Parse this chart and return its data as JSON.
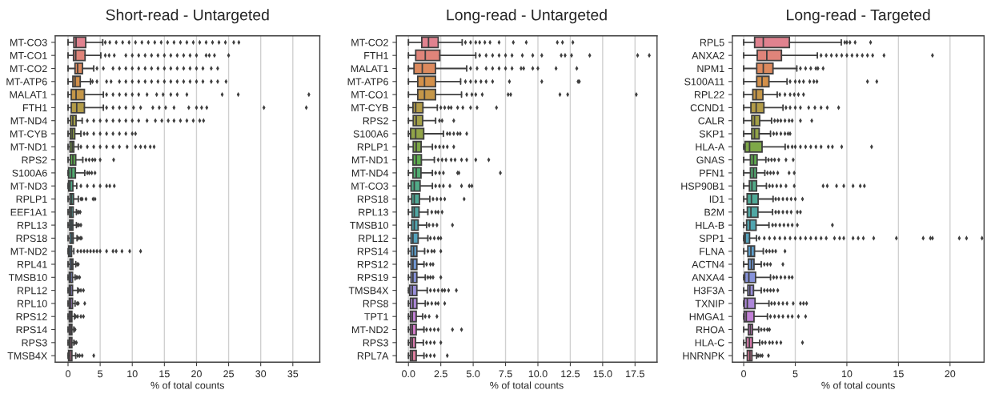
{
  "chart_data": [
    {
      "type": "box",
      "title": "Short-read - Untargeted",
      "xlabel": "% of total counts",
      "orientation": "horizontal",
      "grid": "x",
      "marker": "diamond",
      "xlim": [
        -2,
        39.2
      ],
      "xticks": [
        0,
        5,
        10,
        15,
        20,
        25,
        30,
        35
      ],
      "categories": [
        "MT-CO3",
        "MT-CO1",
        "MT-CO2",
        "MT-ATP6",
        "MALAT1",
        "FTH1",
        "MT-ND4",
        "MT-CYB",
        "MT-ND1",
        "RPS2",
        "S100A6",
        "MT-ND3",
        "RPLP1",
        "EEF1A1",
        "RPL13",
        "RPS18",
        "MT-ND2",
        "RPL41",
        "TMSB10",
        "RPL12",
        "RPL10",
        "RPS12",
        "RPS14",
        "RPS3",
        "TMSB4X"
      ],
      "colors": [
        "#e0828f",
        "#e0847a",
        "#dd8a5e",
        "#d3904a",
        "#c49648",
        "#b39c48",
        "#a3a048",
        "#92a448",
        "#7ea848",
        "#5fad4f",
        "#52ad72",
        "#51ab88",
        "#50aa97",
        "#51a8a4",
        "#52a6b1",
        "#55a3bd",
        "#5d9fcc",
        "#7199d6",
        "#8793da",
        "#9a8fdb",
        "#ae88da",
        "#c280d6",
        "#d27ac8",
        "#db7aae",
        "#df7d9e"
      ],
      "boxes": [
        {
          "low": 0,
          "q1": 0.9,
          "median": 1.25,
          "q3": 2.75,
          "high": 5.4,
          "outliers": [
            5.8,
            6.5,
            7.5,
            8.5,
            9.5,
            10.5,
            11.5,
            12.5,
            13.5,
            14.5,
            15.5,
            16.5,
            17.5,
            18.5,
            19.5,
            20.5,
            21.5,
            22.5,
            23.5,
            24.5,
            25.8,
            26.6
          ]
        },
        {
          "low": 0,
          "q1": 0.85,
          "median": 1.2,
          "q3": 2.65,
          "high": 5.1,
          "outliers": [
            5.8,
            6.4,
            7.2,
            9,
            10,
            11,
            12,
            13,
            14,
            15,
            16,
            17,
            18,
            19,
            20,
            21.5,
            22,
            22.8,
            25
          ]
        },
        {
          "low": 0,
          "q1": 1.08,
          "median": 1.5,
          "q3": 2.25,
          "high": 4.0,
          "outliers": [
            4.5,
            5.5,
            7,
            8,
            9,
            10,
            11,
            12,
            13,
            14,
            15,
            16,
            17,
            18,
            19,
            20,
            21,
            22.3,
            23.3
          ]
        },
        {
          "low": 0,
          "q1": 0.75,
          "median": 1.1,
          "q3": 1.9,
          "high": 3.5,
          "outliers": [
            3.8,
            4.5,
            6,
            6.7,
            8,
            9,
            10,
            11,
            12,
            13,
            14,
            15,
            16,
            17,
            18,
            19,
            20,
            21,
            22.3,
            23.3,
            24.6
          ]
        },
        {
          "low": 0,
          "q1": 0.5,
          "median": 1.25,
          "q3": 2.55,
          "high": 5.5,
          "outliers": [
            6,
            7,
            8,
            9,
            10,
            11,
            12.3,
            13.8,
            14.8,
            16,
            17,
            18.5,
            24,
            26.5,
            37.5
          ]
        },
        {
          "low": 0,
          "q1": 0.5,
          "median": 1.35,
          "q3": 2.55,
          "high": 5.5,
          "outliers": [
            6,
            7,
            8,
            9,
            10.2,
            11.3,
            13.2,
            14.2,
            15.2,
            16.5,
            18.8,
            20,
            20.8,
            21.6,
            30.5,
            37.1
          ]
        },
        {
          "low": 0,
          "q1": 0.4,
          "median": 0.75,
          "q3": 1.25,
          "high": 2.2,
          "outliers": [
            3,
            4,
            5,
            6,
            7,
            8,
            9,
            10,
            11,
            12.3,
            13.6,
            14.6,
            15.6,
            16.5,
            17.5,
            18.5,
            19.5,
            20.5,
            21.1
          ]
        },
        {
          "low": 0,
          "q1": 0.35,
          "median": 0.65,
          "q3": 1.05,
          "high": 2.0,
          "outliers": [
            2.5,
            3,
            4,
            5,
            6,
            7,
            8,
            9,
            10,
            10.5
          ]
        },
        {
          "low": 0,
          "q1": 0.3,
          "median": 0.65,
          "q3": 0.9,
          "high": 1.6,
          "outliers": [
            2,
            3,
            4,
            5,
            6,
            7,
            8,
            9.2,
            10.5,
            11.3,
            12,
            12.8,
            13.4
          ]
        },
        {
          "low": 0,
          "q1": 0.35,
          "median": 0.75,
          "q3": 1.2,
          "high": 2.3,
          "outliers": [
            2.8,
            3.3,
            3.8,
            4.2,
            5,
            7.1
          ]
        },
        {
          "low": 0,
          "q1": 0.1,
          "median": 0.55,
          "q3": 1.15,
          "high": 2.6,
          "outliers": [
            3,
            3.3,
            3.7,
            4.2
          ]
        },
        {
          "low": 0,
          "q1": 0.1,
          "median": 0.3,
          "q3": 0.75,
          "high": 1.35,
          "outliers": [
            2,
            3,
            4,
            5,
            6,
            6.5,
            7.2
          ]
        },
        {
          "low": 0,
          "q1": 0.3,
          "median": 0.55,
          "q3": 0.85,
          "high": 1.6,
          "outliers": [
            2,
            2.2,
            2.8,
            3.9,
            4.2
          ]
        },
        {
          "low": 0,
          "q1": 0.25,
          "median": 0.5,
          "q3": 0.8,
          "high": 1.3,
          "outliers": [
            1.5,
            1.7,
            1.9
          ]
        },
        {
          "low": 0,
          "q1": 0.25,
          "median": 0.5,
          "q3": 0.75,
          "high": 1.3,
          "outliers": [
            1.5,
            1.7,
            2.0
          ]
        },
        {
          "low": 0,
          "q1": 0.3,
          "median": 0.6,
          "q3": 0.8,
          "high": 1.4,
          "outliers": [
            1.6,
            1.9,
            2.1
          ]
        },
        {
          "low": 0,
          "q1": 0.1,
          "median": 0.3,
          "q3": 0.55,
          "high": 0.9,
          "outliers": [
            1.5,
            2,
            2.5,
            3,
            3.5,
            4,
            4.5,
            5,
            6,
            7,
            7.5,
            8.4,
            9.6,
            11.3
          ]
        },
        {
          "low": 0,
          "q1": 0.3,
          "median": 0.55,
          "q3": 0.75,
          "high": 1.2,
          "outliers": [
            1.4,
            1.6
          ]
        },
        {
          "low": 0,
          "q1": 0.2,
          "median": 0.4,
          "q3": 0.7,
          "high": 1.1,
          "outliers": [
            1.3,
            1.5,
            1.8
          ]
        },
        {
          "low": 0,
          "q1": 0.2,
          "median": 0.4,
          "q3": 0.7,
          "high": 1.5,
          "outliers": [
            1.7,
            2.0,
            2.4
          ]
        },
        {
          "low": 0,
          "q1": 0.2,
          "median": 0.4,
          "q3": 0.7,
          "high": 1.1,
          "outliers": [
            1.4,
            1.6,
            2.6
          ]
        },
        {
          "low": 0,
          "q1": 0.2,
          "median": 0.4,
          "q3": 0.6,
          "high": 1.0,
          "outliers": [
            1.2,
            1.5,
            2.0,
            2.4
          ]
        },
        {
          "low": 0,
          "q1": 0.2,
          "median": 0.4,
          "q3": 0.6,
          "high": 0.9,
          "outliers": [
            1.0,
            1.1
          ]
        },
        {
          "low": 0,
          "q1": 0.2,
          "median": 0.35,
          "q3": 0.6,
          "high": 0.9,
          "outliers": [
            1.1,
            1.3
          ]
        },
        {
          "low": 0,
          "q1": 0.1,
          "median": 0.3,
          "q3": 0.6,
          "high": 1.2,
          "outliers": [
            1.5,
            1.8,
            2.2,
            4.0
          ]
        }
      ]
    },
    {
      "type": "box",
      "title": "Long-read - Untargeted",
      "xlabel": "% of total counts",
      "orientation": "horizontal",
      "grid": "x",
      "marker": "diamond",
      "xlim": [
        -0.93,
        19.2
      ],
      "xticks": [
        {
          "value": 0,
          "label": "0.0"
        },
        {
          "value": 2.5,
          "label": "2.5"
        },
        {
          "value": 5,
          "label": "5.0"
        },
        {
          "value": 7.5,
          "label": "7.5"
        },
        {
          "value": 10,
          "label": "10.0"
        },
        {
          "value": 12.5,
          "label": "12.5"
        },
        {
          "value": 15,
          "label": "15.0"
        },
        {
          "value": 17.5,
          "label": "17.5"
        }
      ],
      "categories": [
        "MT-CO2",
        "FTH1",
        "MALAT1",
        "MT-ATP6",
        "MT-CO1",
        "MT-CYB",
        "RPS2",
        "S100A6",
        "RPLP1",
        "MT-ND1",
        "MT-ND4",
        "MT-CO3",
        "RPS18",
        "RPL13",
        "TMSB10",
        "RPL12",
        "RPS14",
        "RPS12",
        "RPS19",
        "TMSB4X",
        "RPS8",
        "TPT1",
        "MT-ND2",
        "RPS3",
        "RPL7A"
      ],
      "colors": [
        "#e0828f",
        "#e0847a",
        "#dd8a5e",
        "#d3904a",
        "#c49648",
        "#b39c48",
        "#a3a048",
        "#92a448",
        "#7ea848",
        "#5fad4f",
        "#52ad72",
        "#51ab88",
        "#50aa97",
        "#51a8a4",
        "#52a6b1",
        "#55a3bd",
        "#5d9fcc",
        "#7199d6",
        "#8793da",
        "#9a8fdb",
        "#ae88da",
        "#c280d6",
        "#d27ac8",
        "#db7aae",
        "#df7d9e"
      ],
      "boxes": [
        {
          "low": 0,
          "q1": 1.03,
          "median": 1.55,
          "q3": 2.3,
          "high": 4.15,
          "outliers": [
            4.4,
            4.8,
            5.2,
            5.5,
            5.9,
            6.3,
            7.0,
            8.1,
            9.1,
            11.5,
            11.9,
            12.7
          ]
        },
        {
          "low": 0,
          "q1": 0.56,
          "median": 1.3,
          "q3": 2.42,
          "high": 5.2,
          "outliers": [
            5.5,
            6,
            6.5,
            7,
            7.5,
            8,
            8.8,
            9.6,
            10.3,
            11.8,
            12.1,
            12.6,
            14,
            17.7,
            18.6
          ]
        },
        {
          "low": 0,
          "q1": 0.43,
          "median": 1.07,
          "q3": 2.09,
          "high": 4.5,
          "outliers": [
            4.8,
            5.3,
            6,
            6.5,
            7,
            7.5,
            8,
            8.7,
            8.9,
            9.6,
            10,
            11.4,
            13
          ]
        },
        {
          "low": 0,
          "q1": 0.72,
          "median": 1.24,
          "q3": 2.09,
          "high": 4.03,
          "outliers": [
            4.4,
            4.8,
            5.2,
            5.6,
            6,
            6.5,
            7.8,
            10.3,
            13.1,
            13.2
          ]
        },
        {
          "low": 0,
          "q1": 0.72,
          "median": 1.24,
          "q3": 2.09,
          "high": 4.1,
          "outliers": [
            4.5,
            4.9,
            5.2,
            5.7,
            7.7,
            7.9,
            11.7,
            12.3,
            17.6
          ]
        },
        {
          "low": 0,
          "q1": 0.35,
          "median": 0.56,
          "q3": 1.12,
          "high": 2.23,
          "outliers": [
            2.5,
            2.8,
            3.1,
            3.3,
            3.8,
            4.2,
            4.8,
            5.3,
            6.8
          ]
        },
        {
          "low": 0,
          "q1": 0.37,
          "median": 0.6,
          "q3": 1.1,
          "high": 2.1,
          "outliers": [
            2.4,
            2.6,
            3.5
          ]
        },
        {
          "low": 0,
          "q1": 0.17,
          "median": 0.56,
          "q3": 1.18,
          "high": 2.7,
          "outliers": [
            3,
            3.2,
            3.5,
            3.8,
            4.0,
            4.5
          ]
        },
        {
          "low": 0,
          "q1": 0.37,
          "median": 0.6,
          "q3": 0.98,
          "high": 1.85,
          "outliers": [
            2.1,
            2.4,
            2.7,
            3.0,
            3.5
          ]
        },
        {
          "low": 0,
          "q1": 0.35,
          "median": 0.6,
          "q3": 1.0,
          "high": 2.0,
          "outliers": [
            2.3,
            2.6,
            2.9,
            3.3,
            3.6,
            4.1,
            4.5,
            5.2,
            6.2
          ]
        },
        {
          "low": 0,
          "q1": 0.35,
          "median": 0.6,
          "q3": 0.97,
          "high": 1.85,
          "outliers": [
            2.1,
            2.4,
            2.7,
            3.8,
            3.9,
            7.1
          ]
        },
        {
          "low": 0,
          "q1": 0.2,
          "median": 0.45,
          "q3": 0.9,
          "high": 1.85,
          "outliers": [
            2.1,
            2.4,
            2.7,
            3.2,
            4.1,
            4.7,
            4.9
          ]
        },
        {
          "low": 0,
          "q1": 0.25,
          "median": 0.45,
          "q3": 0.85,
          "high": 1.65,
          "outliers": [
            1.9,
            2.2,
            2.5,
            2.8,
            4.3
          ]
        },
        {
          "low": 0,
          "q1": 0.28,
          "median": 0.45,
          "q3": 0.82,
          "high": 1.5,
          "outliers": [
            1.8,
            2.1,
            2.3,
            2.6
          ]
        },
        {
          "low": 0,
          "q1": 0.25,
          "median": 0.45,
          "q3": 0.75,
          "high": 1.4,
          "outliers": [
            1.6,
            1.9,
            2.2,
            3.4
          ]
        },
        {
          "low": 0,
          "q1": 0.2,
          "median": 0.35,
          "q3": 0.75,
          "high": 1.5,
          "outliers": [
            1.7,
            2.0,
            2.3,
            2.5
          ]
        },
        {
          "low": 0,
          "q1": 0.2,
          "median": 0.4,
          "q3": 0.65,
          "high": 1.25,
          "outliers": [
            1.5,
            1.8,
            2.0,
            2.5
          ]
        },
        {
          "low": 0,
          "q1": 0.2,
          "median": 0.35,
          "q3": 0.65,
          "high": 1.2,
          "outliers": [
            1.4,
            1.7,
            1.9
          ]
        },
        {
          "low": 0,
          "q1": 0.2,
          "median": 0.35,
          "q3": 0.65,
          "high": 1.3,
          "outliers": [
            1.5,
            1.7,
            1.9,
            2.5
          ]
        },
        {
          "low": 0,
          "q1": 0.1,
          "median": 0.3,
          "q3": 0.65,
          "high": 1.45,
          "outliers": [
            1.7,
            2.0,
            2.3,
            2.6,
            2.8,
            3.1,
            3.7
          ]
        },
        {
          "low": 0,
          "q1": 0.15,
          "median": 0.35,
          "q3": 0.65,
          "high": 1.3,
          "outliers": [
            1.5,
            1.8,
            2.1,
            2.3,
            2.8
          ]
        },
        {
          "low": 0,
          "q1": 0.15,
          "median": 0.3,
          "q3": 0.6,
          "high": 1.1,
          "outliers": [
            1.3,
            1.6,
            2.2
          ]
        },
        {
          "low": 0,
          "q1": 0.15,
          "median": 0.3,
          "q3": 0.6,
          "high": 1.2,
          "outliers": [
            1.4,
            1.7,
            2.0,
            2.3,
            3.4,
            4.1
          ]
        },
        {
          "low": 0,
          "q1": 0.15,
          "median": 0.3,
          "q3": 0.55,
          "high": 1.15,
          "outliers": [
            1.4,
            1.7,
            2.0,
            2.5
          ]
        },
        {
          "low": 0,
          "q1": 0.15,
          "median": 0.3,
          "q3": 0.6,
          "high": 1.2,
          "outliers": [
            1.4,
            1.7,
            2.0,
            3.0
          ]
        }
      ]
    },
    {
      "type": "box",
      "title": "Long-read - Targeted",
      "xlabel": "% of total counts",
      "orientation": "horizontal",
      "grid": "x",
      "marker": "diamond",
      "xlim": [
        -1.1,
        23.3
      ],
      "xticks": [
        0,
        5,
        10,
        15,
        20
      ],
      "categories": [
        "RPL5",
        "ANXA2",
        "NPM1",
        "S100A11",
        "RPL22",
        "CCND1",
        "CALR",
        "SKP1",
        "HLA-A",
        "GNAS",
        "PFN1",
        "HSP90B1",
        "ID1",
        "B2M",
        "HLA-B",
        "SPP1",
        "FLNA",
        "ACTN4",
        "ANXA4",
        "H3F3A",
        "TXNIP",
        "HMGA1",
        "RHOA",
        "HLA-C",
        "HNRNPK"
      ],
      "colors": [
        "#e0828f",
        "#e0847a",
        "#dd8a5e",
        "#d3904a",
        "#c49648",
        "#b39c48",
        "#a3a048",
        "#92a448",
        "#7ea848",
        "#5fad4f",
        "#52ad72",
        "#51ab88",
        "#50aa97",
        "#51a8a4",
        "#52a6b1",
        "#55a3bd",
        "#5d9fcc",
        "#7199d6",
        "#8793da",
        "#9a8fdb",
        "#ae88da",
        "#c280d6",
        "#d27ac8",
        "#db7aae",
        "#df7d9e"
      ],
      "boxes": [
        {
          "low": 0,
          "q1": 1.06,
          "median": 1.9,
          "q3": 4.43,
          "high": 9.46,
          "outliers": [
            9.8,
            10,
            10.3,
            10.8,
            12.3
          ]
        },
        {
          "low": 0,
          "q1": 1.31,
          "median": 2.24,
          "q3": 3.66,
          "high": 7.14,
          "outliers": [
            7.5,
            8,
            8.5,
            9,
            9.5,
            10,
            10.5,
            11,
            11.5,
            12,
            12.5,
            13.6,
            18.3
          ]
        },
        {
          "low": 0,
          "q1": 1.26,
          "median": 1.9,
          "q3": 2.84,
          "high": 5.15,
          "outliers": [
            5.5,
            6,
            6.5,
            7,
            7.2,
            7.7
          ]
        },
        {
          "low": 0,
          "q1": 1.26,
          "median": 1.78,
          "q3": 2.45,
          "high": 4.2,
          "outliers": [
            4.5,
            5,
            5.4,
            5.8,
            6.4,
            6.8,
            7.1,
            12,
            12.9
          ]
        },
        {
          "low": 0,
          "q1": 0.88,
          "median": 1.21,
          "q3": 1.86,
          "high": 3.25,
          "outliers": [
            3.5,
            4,
            4.5,
            4.9,
            5.3,
            5.8
          ]
        },
        {
          "low": 0,
          "q1": 0.7,
          "median": 1.21,
          "q3": 1.96,
          "high": 3.81,
          "outliers": [
            4.1,
            4.5,
            5,
            5.5,
            6.3,
            6.9,
            7.5,
            8.1,
            9.2
          ]
        },
        {
          "low": 0,
          "q1": 0.78,
          "median": 1.05,
          "q3": 1.55,
          "high": 2.7,
          "outliers": [
            3,
            3.3,
            3.6,
            4,
            4.4,
            4.7,
            5.5,
            6.6
          ]
        },
        {
          "low": 0,
          "q1": 0.78,
          "median": 1.05,
          "q3": 1.5,
          "high": 2.6,
          "outliers": [
            2.9,
            3.2,
            3.6,
            4.0,
            4.3,
            4.5
          ]
        },
        {
          "low": 0,
          "q1": 0.13,
          "median": 0.57,
          "q3": 1.78,
          "high": 4.02,
          "outliers": [
            4.3,
            4.7,
            5,
            5.5,
            6,
            6.5,
            7,
            7.5,
            8.2,
            8.6,
            9.5,
            12.4
          ]
        },
        {
          "low": 0,
          "q1": 0.65,
          "median": 0.95,
          "q3": 1.3,
          "high": 2.15,
          "outliers": [
            2.4,
            2.7,
            3,
            3.4,
            4.1,
            4.8
          ]
        },
        {
          "low": 0,
          "q1": 0.65,
          "median": 0.95,
          "q3": 1.25,
          "high": 2.05,
          "outliers": [
            2.3,
            2.6,
            2.9,
            3.3,
            4.4,
            4.9
          ]
        },
        {
          "low": 0,
          "q1": 0.55,
          "median": 0.8,
          "q3": 1.25,
          "high": 2.2,
          "outliers": [
            2.5,
            2.8,
            3.2,
            3.6,
            4.1,
            4.9,
            7.7,
            8.1,
            9,
            9.7,
            10.6,
            11.3,
            11.7
          ]
        },
        {
          "low": 0,
          "q1": 0.33,
          "median": 0.75,
          "q3": 1.4,
          "high": 2.85,
          "outliers": [
            3.1,
            3.4,
            3.8,
            4.2,
            4.6,
            5,
            5.7
          ]
        },
        {
          "low": 0,
          "q1": 0.35,
          "median": 0.7,
          "q3": 1.38,
          "high": 2.8,
          "outliers": [
            3.1,
            3.4,
            3.8,
            4.2,
            4.6,
            5.2,
            5.5
          ]
        },
        {
          "low": 0,
          "q1": 0.28,
          "median": 0.6,
          "q3": 1.2,
          "high": 2.45,
          "outliers": [
            2.8,
            3.1,
            3.5,
            3.9,
            4.3,
            4.7,
            5.2,
            8.6
          ]
        },
        {
          "low": 0,
          "q1": 0.05,
          "median": 0.15,
          "q3": 0.57,
          "high": 1.24,
          "outliers": [
            1.5,
            2,
            2.5,
            3,
            3.5,
            4,
            4.5,
            5,
            5.5,
            6,
            6.5,
            7,
            7.5,
            8,
            8.8,
            9.3,
            9.7,
            10.6,
            11.1,
            11.6,
            12.6,
            14.8,
            17.4,
            18.1,
            18.3,
            20.9,
            21.6,
            23.1
          ]
        },
        {
          "low": 0,
          "q1": 0.4,
          "median": 0.7,
          "q3": 1.05,
          "high": 1.9,
          "outliers": [
            2.2,
            2.5,
            2.8,
            3.1,
            4.0
          ]
        },
        {
          "low": 0,
          "q1": 0.45,
          "median": 0.75,
          "q3": 1.0,
          "high": 1.7,
          "outliers": [
            2.0,
            2.3,
            2.6,
            3.8
          ]
        },
        {
          "low": 0,
          "q1": 0.1,
          "median": 0.5,
          "q3": 1.15,
          "high": 2.6,
          "outliers": [
            2.9,
            3.2,
            3.6,
            4.0,
            4.4,
            4.7
          ]
        },
        {
          "low": 0,
          "q1": 0.4,
          "median": 0.6,
          "q3": 0.95,
          "high": 1.7,
          "outliers": [
            2.0,
            2.3,
            2.6,
            2.9,
            3.3
          ]
        },
        {
          "low": 0,
          "q1": 0.05,
          "median": 0.35,
          "q3": 1.1,
          "high": 2.45,
          "outliers": [
            2.7,
            3,
            3.4,
            3.8,
            4.2,
            4.8,
            5.5,
            5.8,
            6.1
          ]
        },
        {
          "low": 0,
          "q1": 0.05,
          "median": 0.25,
          "q3": 1.0,
          "high": 2.3,
          "outliers": [
            2.6,
            3,
            3.4,
            3.8,
            4.3,
            4.7,
            5.3,
            6.0
          ]
        },
        {
          "low": 0,
          "q1": 0.45,
          "median": 0.65,
          "q3": 0.85,
          "high": 1.45,
          "outliers": [
            1.7,
            2,
            2.3,
            2.5
          ]
        },
        {
          "low": 0,
          "q1": 0.25,
          "median": 0.55,
          "q3": 0.85,
          "high": 1.55,
          "outliers": [
            1.8,
            2.1,
            2.5,
            2.8,
            3.2,
            3.6,
            5.7
          ]
        },
        {
          "low": 0,
          "q1": 0.35,
          "median": 0.6,
          "q3": 0.8,
          "high": 1.25,
          "outliers": [
            1.4,
            1.6,
            1.8,
            2.4
          ]
        }
      ]
    }
  ]
}
